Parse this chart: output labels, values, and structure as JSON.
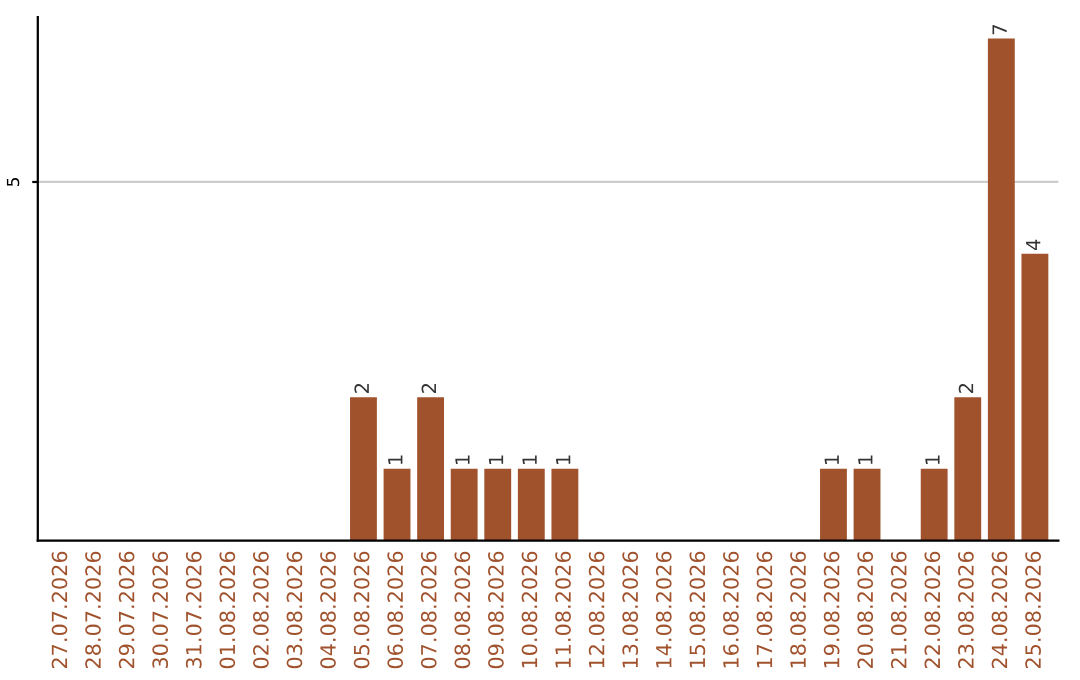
{
  "chart_data": {
    "type": "bar",
    "categories": [
      "27.07.2026",
      "28.07.2026",
      "29.07.2026",
      "30.07.2026",
      "31.07.2026",
      "01.08.2026",
      "02.08.2026",
      "03.08.2026",
      "04.08.2026",
      "05.08.2026",
      "06.08.2026",
      "07.08.2026",
      "08.08.2026",
      "09.08.2026",
      "10.08.2026",
      "11.08.2026",
      "12.08.2026",
      "13.08.2026",
      "14.08.2026",
      "15.08.2026",
      "16.08.2026",
      "17.08.2026",
      "18.08.2026",
      "19.08.2026",
      "20.08.2026",
      "21.08.2026",
      "22.08.2026",
      "23.08.2026",
      "24.08.2026",
      "25.08.2026"
    ],
    "values": [
      0,
      0,
      0,
      0,
      0,
      0,
      0,
      0,
      0,
      2,
      1,
      2,
      1,
      1,
      1,
      1,
      0,
      0,
      0,
      0,
      0,
      0,
      0,
      1,
      1,
      0,
      1,
      2,
      7,
      4
    ],
    "value_labels": [
      null,
      null,
      null,
      null,
      null,
      null,
      null,
      null,
      null,
      "2",
      "1",
      "2",
      "1",
      "1",
      "1",
      "1",
      null,
      null,
      null,
      null,
      null,
      null,
      null,
      "1",
      "1",
      null,
      "1",
      "2",
      "7",
      "4"
    ],
    "color": "#a0522d",
    "ylim": [
      0,
      7.3
    ],
    "yticks": [
      5
    ],
    "grid": "y"
  }
}
